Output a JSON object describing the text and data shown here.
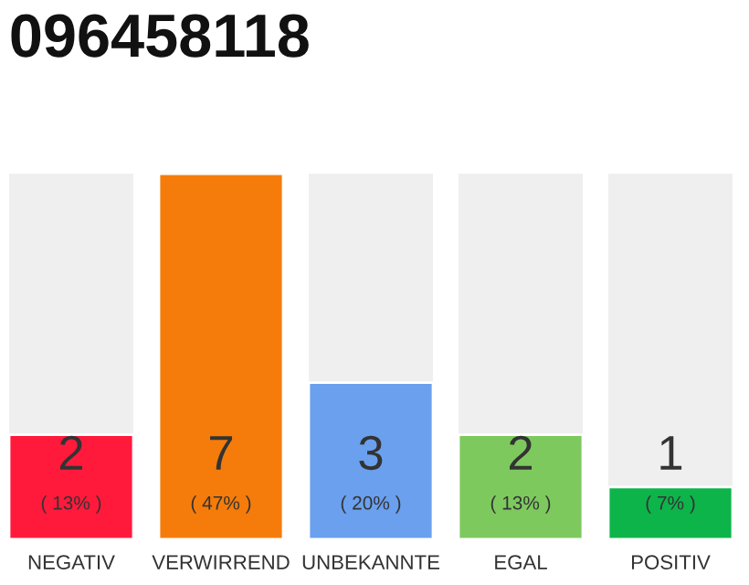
{
  "chart_data": {
    "type": "bar",
    "title": "096458118",
    "categories": [
      "NEGATIV",
      "VERWIRREND",
      "UNBEKANNTE",
      "EGAL",
      "POSITIV"
    ],
    "values": [
      2,
      7,
      3,
      2,
      1
    ],
    "colors": [
      "#ff1a3c",
      "#f57c0a",
      "#6aa0ee",
      "#7dc95e",
      "#0db44a"
    ],
    "ylim": [
      0,
      7
    ],
    "data_labels": true,
    "grid": false,
    "legend": false,
    "annotations": [
      "( 13% )",
      "( 47% )",
      "( 20% )",
      "( 13% )",
      "( 7% )"
    ]
  }
}
